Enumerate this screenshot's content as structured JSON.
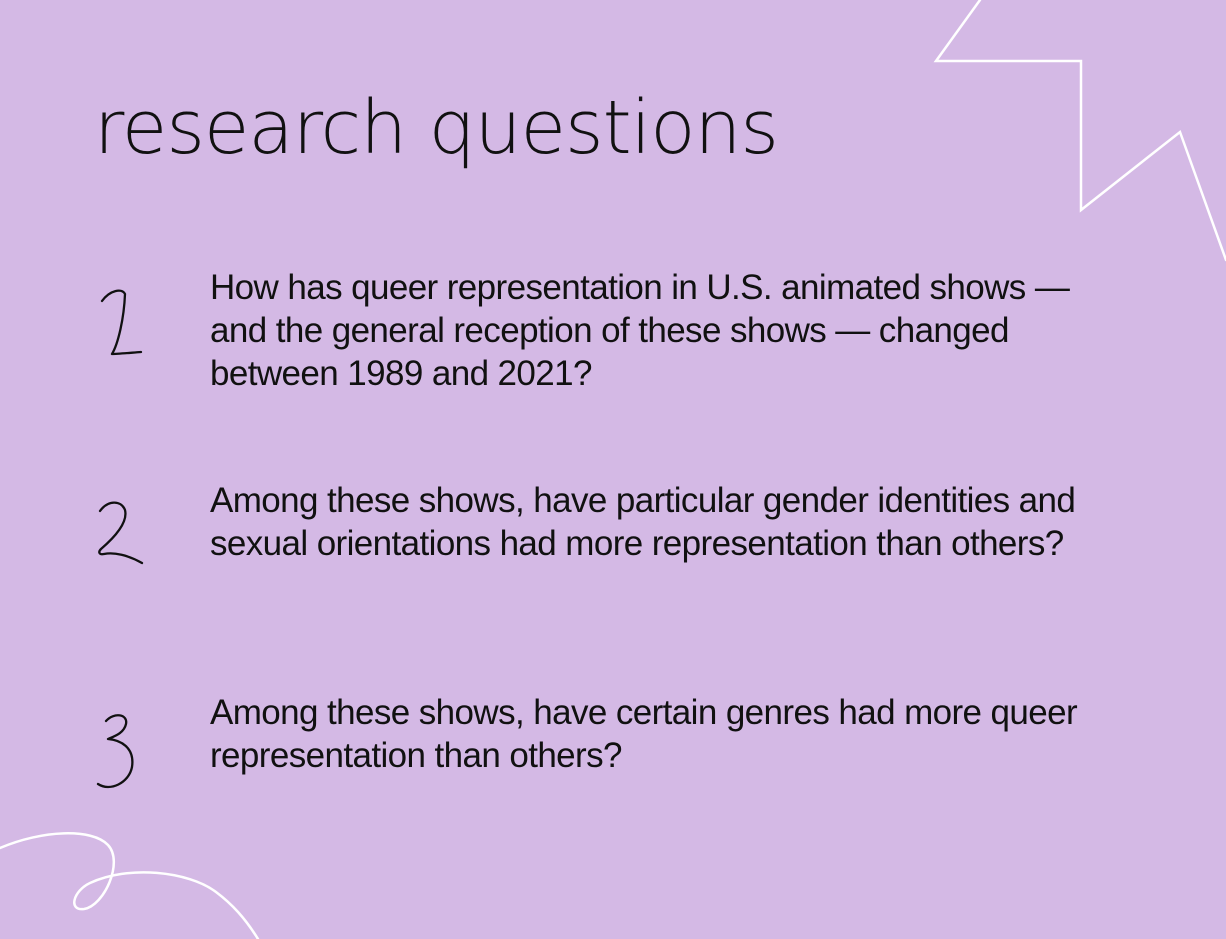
{
  "slide": {
    "title": "research questions",
    "background_color": "#d4b9e5",
    "accent_color": "#ffffff",
    "questions": [
      {
        "number": "1",
        "number_icon": "handwritten-one-icon",
        "text": "How has queer representation in U.S. animated shows — and the general reception of these shows — changed between 1989 and 2021?"
      },
      {
        "number": "2",
        "number_icon": "handwritten-two-icon",
        "text": "Among these shows, have particular gender identities and sexual orientations had more representation than others?"
      },
      {
        "number": "3",
        "number_icon": "handwritten-three-icon",
        "text": "Among these shows, have certain genres had more queer representation than others?"
      }
    ],
    "decorations": [
      "zigzag-line-icon",
      "looped-swirl-line-icon"
    ]
  }
}
